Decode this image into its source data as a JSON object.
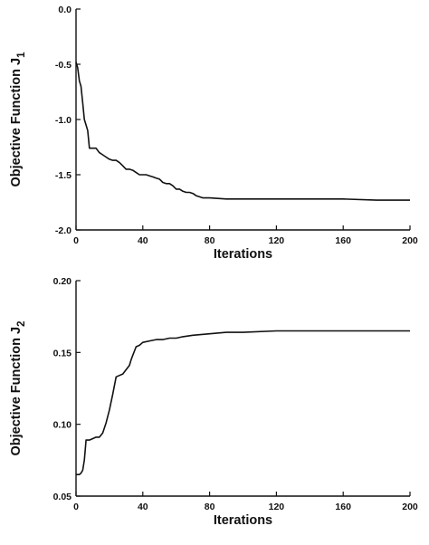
{
  "chart_data": [
    {
      "type": "line",
      "title": "",
      "xlabel": "Iterations",
      "ylabel_main": "Objective Function J",
      "ylabel_sub": "1",
      "xlim": [
        0,
        200
      ],
      "ylim": [
        -2.0,
        0.0
      ],
      "xticks": [
        0,
        40,
        80,
        120,
        160,
        200
      ],
      "xtick_labels": [
        "0",
        "40",
        "80",
        "120",
        "160",
        "200"
      ],
      "yticks": [
        0.0,
        -0.5,
        -1.0,
        -1.5,
        -2.0
      ],
      "ytick_labels": [
        "0.0",
        "-0.5",
        "-1.0",
        "-1.5",
        "-2.0"
      ],
      "grid": false,
      "series": [
        {
          "x": [
            0,
            1,
            2,
            3,
            4,
            5,
            6,
            7,
            8,
            10,
            12,
            14,
            16,
            18,
            20,
            22,
            24,
            26,
            28,
            30,
            32,
            34,
            36,
            38,
            40,
            42,
            44,
            46,
            48,
            50,
            52,
            54,
            56,
            58,
            60,
            62,
            64,
            66,
            68,
            70,
            72,
            74,
            76,
            78,
            80,
            90,
            100,
            120,
            140,
            160,
            180,
            200
          ],
          "y": [
            -0.48,
            -0.53,
            -0.65,
            -0.7,
            -0.85,
            -1.0,
            -1.05,
            -1.1,
            -1.26,
            -1.26,
            -1.26,
            -1.3,
            -1.32,
            -1.34,
            -1.36,
            -1.37,
            -1.37,
            -1.39,
            -1.42,
            -1.45,
            -1.45,
            -1.46,
            -1.48,
            -1.5,
            -1.5,
            -1.5,
            -1.51,
            -1.52,
            -1.53,
            -1.54,
            -1.57,
            -1.58,
            -1.58,
            -1.6,
            -1.63,
            -1.63,
            -1.65,
            -1.66,
            -1.66,
            -1.67,
            -1.69,
            -1.7,
            -1.71,
            -1.71,
            -1.71,
            -1.72,
            -1.72,
            -1.72,
            -1.72,
            -1.72,
            -1.73,
            -1.73
          ]
        }
      ]
    },
    {
      "type": "line",
      "title": "",
      "xlabel": "Iterations",
      "ylabel_main": "Objective Function J",
      "ylabel_sub": "2",
      "xlim": [
        0,
        200
      ],
      "ylim": [
        0.05,
        0.2
      ],
      "xticks": [
        0,
        40,
        80,
        120,
        160,
        200
      ],
      "xtick_labels": [
        "0",
        "40",
        "80",
        "120",
        "160",
        "200"
      ],
      "yticks": [
        0.2,
        0.15,
        0.1,
        0.05
      ],
      "ytick_labels": [
        "0.20",
        "0.15",
        "0.10",
        "0.05"
      ],
      "grid": false,
      "series": [
        {
          "x": [
            0,
            2,
            3,
            4,
            5,
            6,
            8,
            10,
            12,
            13,
            14,
            16,
            18,
            20,
            22,
            24,
            26,
            28,
            30,
            32,
            33,
            34,
            36,
            38,
            40,
            44,
            48,
            52,
            56,
            60,
            64,
            70,
            80,
            90,
            100,
            120,
            140,
            160,
            180,
            200
          ],
          "y": [
            0.065,
            0.065,
            0.066,
            0.068,
            0.075,
            0.089,
            0.089,
            0.09,
            0.091,
            0.091,
            0.091,
            0.094,
            0.101,
            0.11,
            0.121,
            0.133,
            0.134,
            0.135,
            0.138,
            0.141,
            0.145,
            0.148,
            0.154,
            0.155,
            0.157,
            0.158,
            0.159,
            0.159,
            0.16,
            0.16,
            0.161,
            0.162,
            0.163,
            0.164,
            0.164,
            0.165,
            0.165,
            0.165,
            0.165,
            0.165
          ]
        }
      ]
    }
  ]
}
